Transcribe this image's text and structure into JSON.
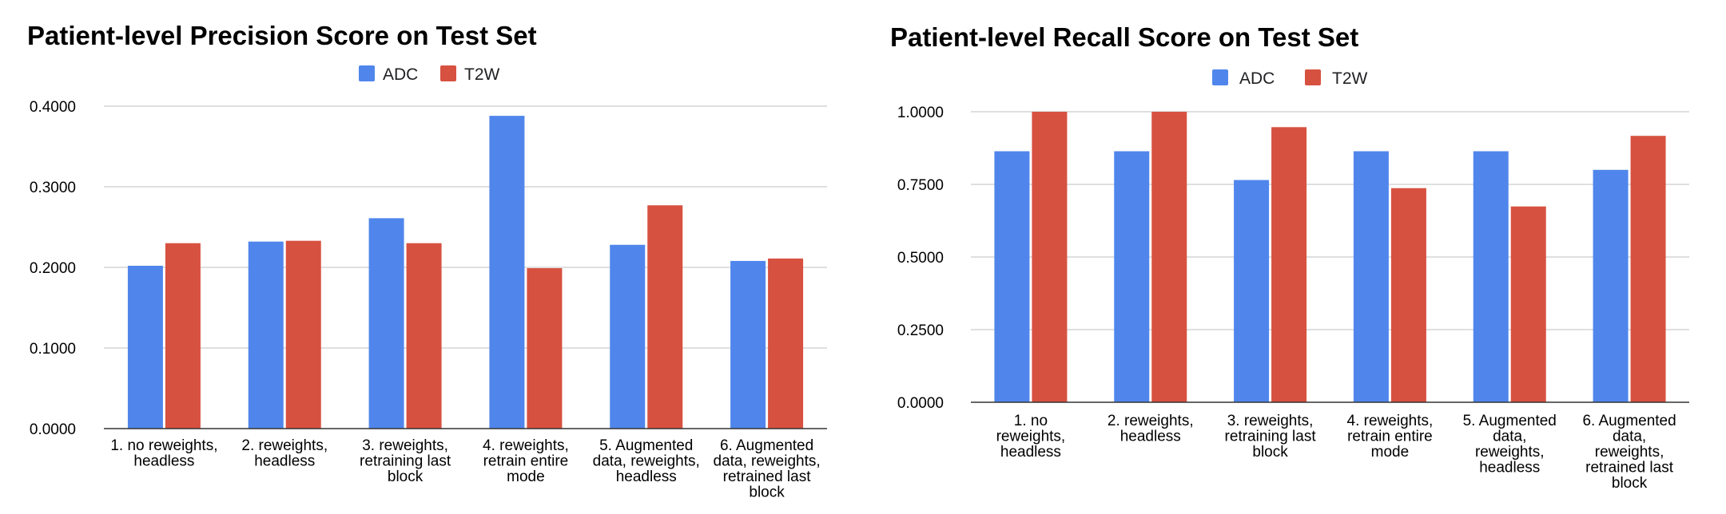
{
  "colors": {
    "adc": "#5086ec",
    "t2w": "#d75140"
  },
  "chart_data": [
    {
      "type": "bar",
      "title": "Patient-level Precision Score on Test Set",
      "xlabel": "",
      "ylabel": "",
      "legend_position": "top",
      "grid": true,
      "ylim": [
        0,
        0.4
      ],
      "yticks": [
        "0.0000",
        "0.1000",
        "0.2000",
        "0.3000",
        "0.4000"
      ],
      "categories": [
        [
          "1. no reweights,",
          "headless"
        ],
        [
          "2. reweights,",
          "headless"
        ],
        [
          "3. reweights,",
          "retraining last",
          "block"
        ],
        [
          "4. reweights,",
          "retrain entire",
          "mode"
        ],
        [
          "5. Augmented",
          "data, reweights,",
          "headless"
        ],
        [
          "6. Augmented",
          "data, reweights,",
          "retrained last",
          "block"
        ]
      ],
      "series": [
        {
          "name": "ADC",
          "values": [
            0.202,
            0.232,
            0.261,
            0.388,
            0.228,
            0.208
          ]
        },
        {
          "name": "T2W",
          "values": [
            0.23,
            0.233,
            0.23,
            0.199,
            0.277,
            0.211
          ]
        }
      ]
    },
    {
      "type": "bar",
      "title": "Patient-level Recall Score on Test Set",
      "xlabel": "",
      "ylabel": "",
      "legend_position": "top",
      "grid": true,
      "ylim": [
        0,
        1.0
      ],
      "yticks": [
        "0.0000",
        "0.2500",
        "0.5000",
        "0.7500",
        "1.0000"
      ],
      "categories": [
        [
          "1. no",
          "reweights,",
          "headless"
        ],
        [
          "2. reweights,",
          "headless"
        ],
        [
          "3. reweights,",
          "retraining last",
          "block"
        ],
        [
          "4. reweights,",
          "retrain entire",
          "mode"
        ],
        [
          "5. Augmented",
          "data,",
          "reweights,",
          "headless"
        ],
        [
          "6. Augmented",
          "data,",
          "reweights,",
          "retrained last",
          "block"
        ]
      ],
      "series": [
        {
          "name": "ADC",
          "values": [
            0.864,
            0.864,
            0.765,
            0.864,
            0.864,
            0.8
          ]
        },
        {
          "name": "T2W",
          "values": [
            1.0,
            1.0,
            0.947,
            0.737,
            0.674,
            0.917
          ]
        }
      ]
    }
  ]
}
